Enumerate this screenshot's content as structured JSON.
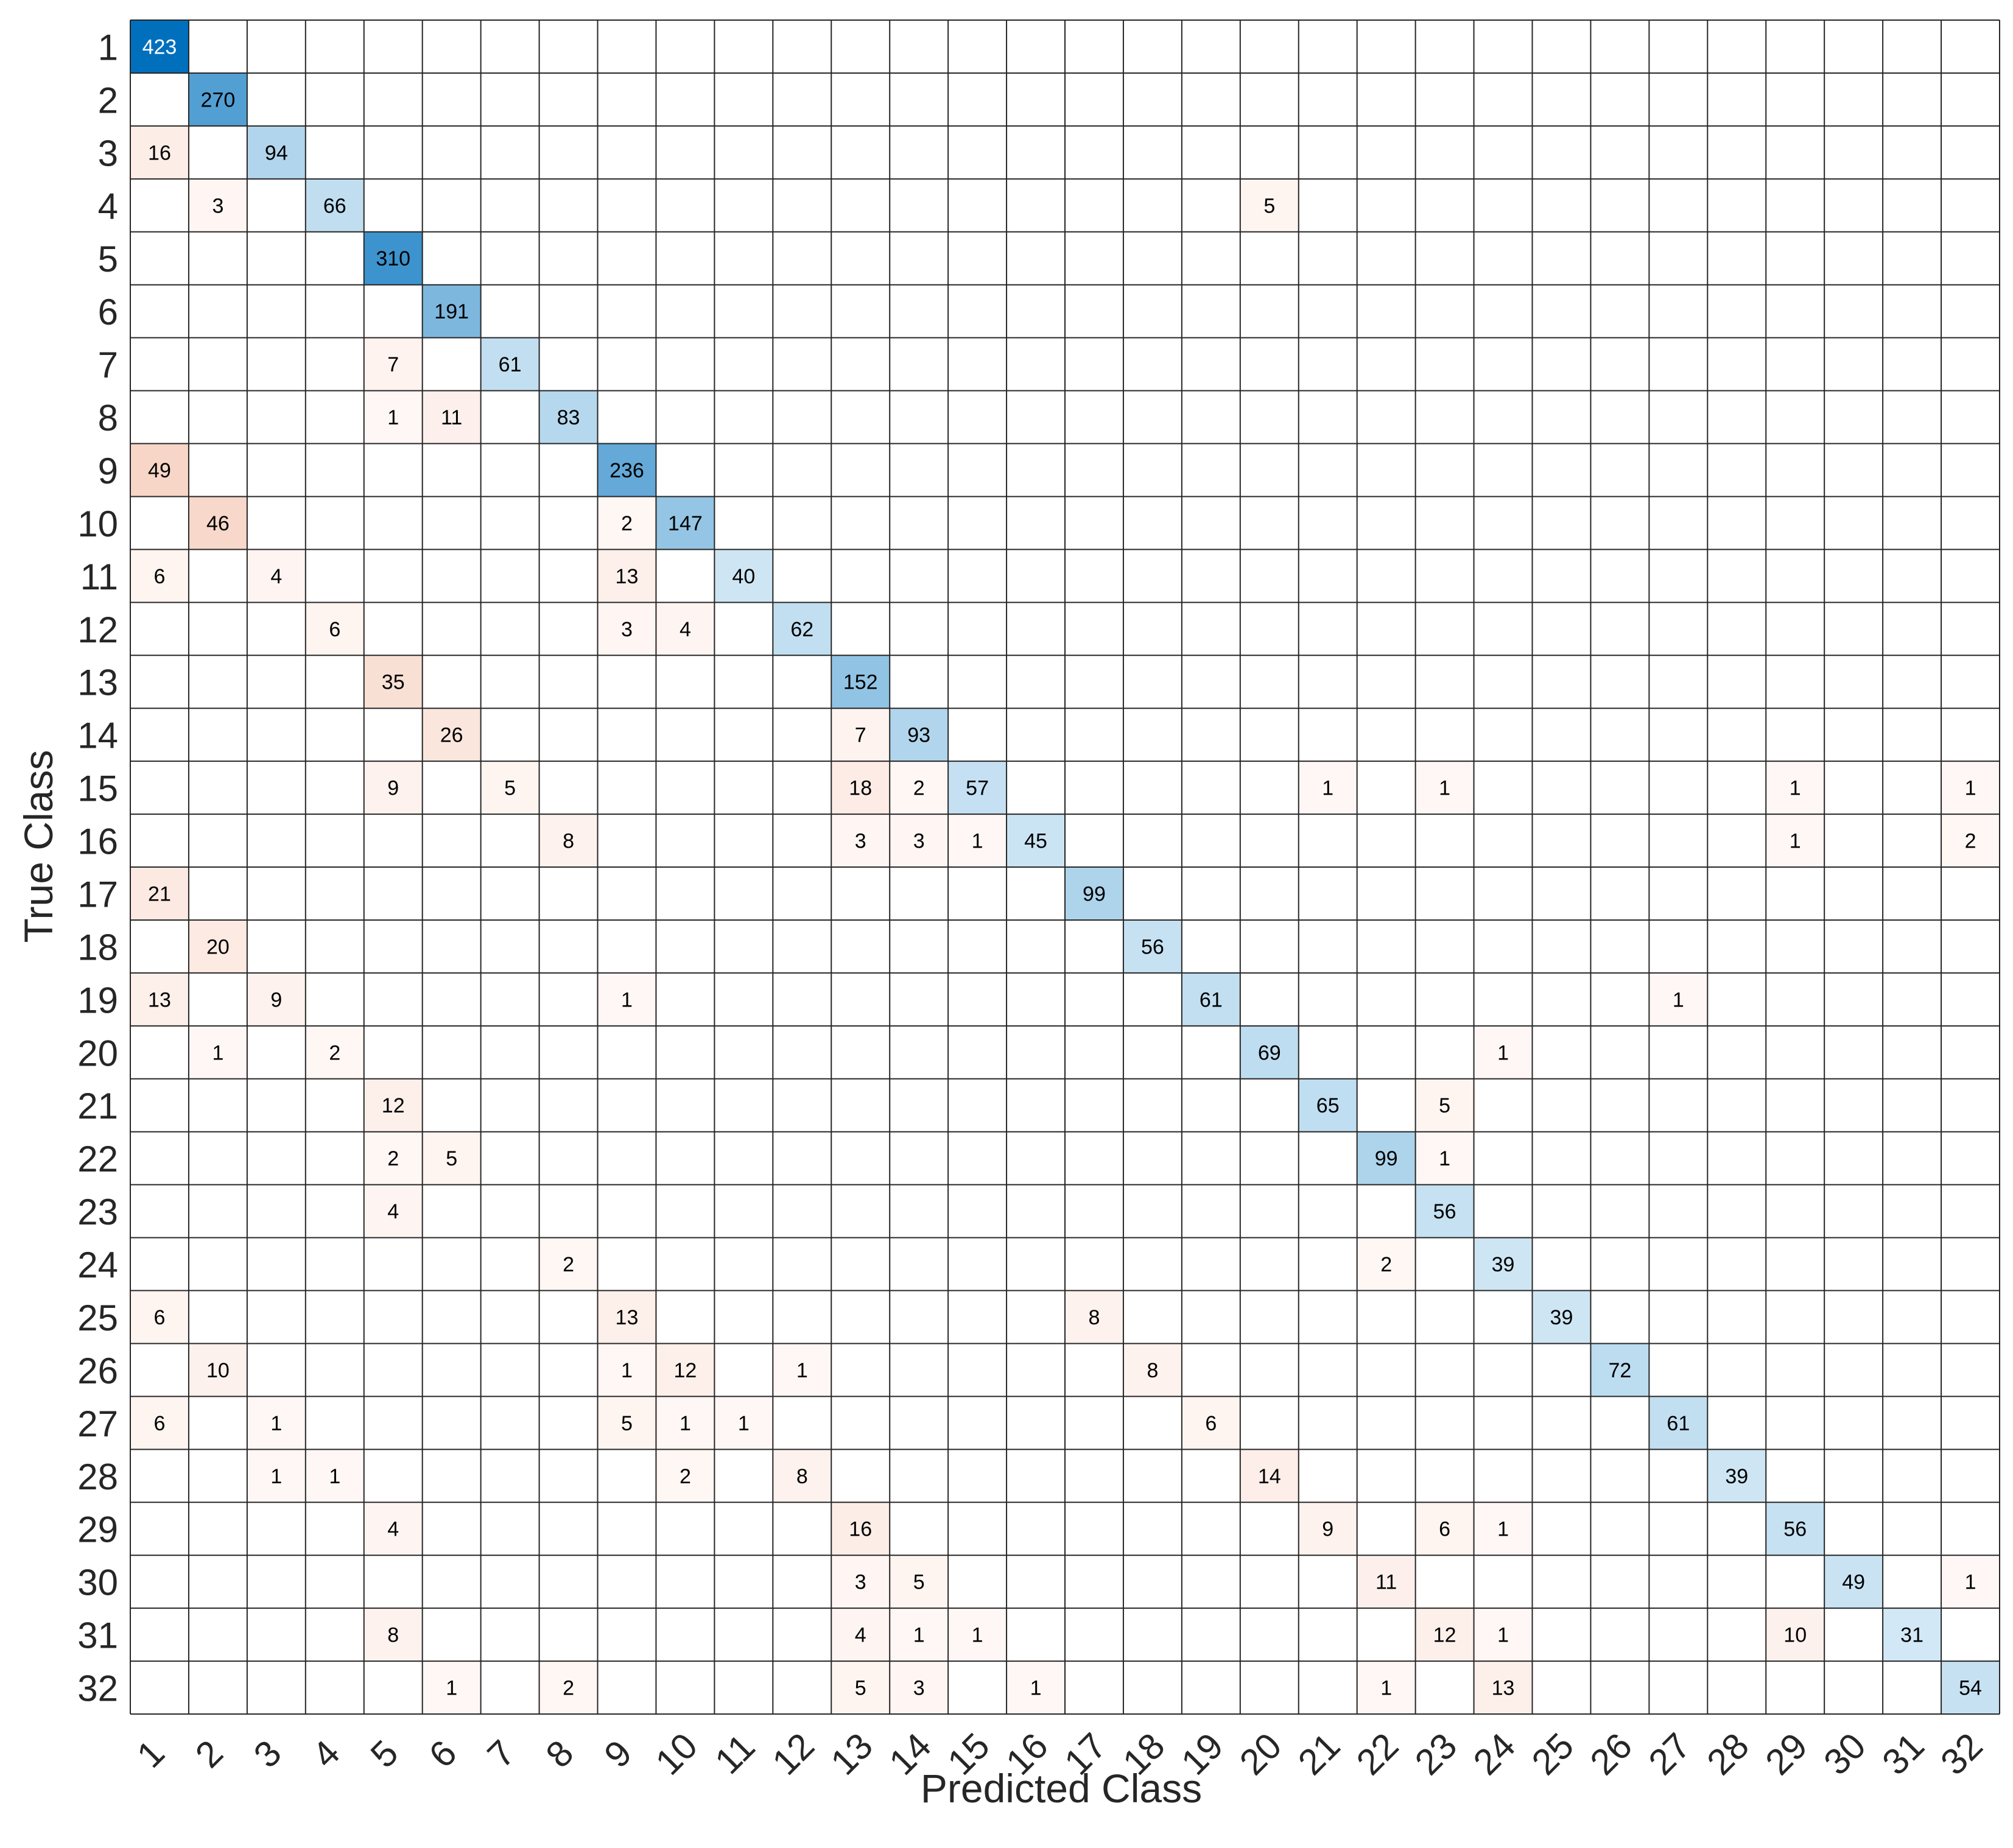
{
  "chart_data": {
    "type": "heatmap",
    "title": "",
    "xlabel": "Predicted Class",
    "ylabel": "True Class",
    "row_labels": [
      "1",
      "2",
      "3",
      "4",
      "5",
      "6",
      "7",
      "8",
      "9",
      "10",
      "11",
      "12",
      "13",
      "14",
      "15",
      "16",
      "17",
      "18",
      "19",
      "20",
      "21",
      "22",
      "23",
      "24",
      "25",
      "26",
      "27",
      "28",
      "29",
      "30",
      "31",
      "32"
    ],
    "col_labels": [
      "1",
      "2",
      "3",
      "4",
      "5",
      "6",
      "7",
      "8",
      "9",
      "10",
      "11",
      "12",
      "13",
      "14",
      "15",
      "16",
      "17",
      "18",
      "19",
      "20",
      "21",
      "22",
      "23",
      "24",
      "25",
      "26",
      "27",
      "28",
      "29",
      "30",
      "31",
      "32"
    ],
    "cells": [
      {
        "row": 1,
        "col": 1,
        "value": 423
      },
      {
        "row": 2,
        "col": 2,
        "value": 270
      },
      {
        "row": 3,
        "col": 1,
        "value": 16
      },
      {
        "row": 3,
        "col": 3,
        "value": 94
      },
      {
        "row": 4,
        "col": 2,
        "value": 3
      },
      {
        "row": 4,
        "col": 4,
        "value": 66
      },
      {
        "row": 4,
        "col": 20,
        "value": 5
      },
      {
        "row": 5,
        "col": 5,
        "value": 310
      },
      {
        "row": 6,
        "col": 6,
        "value": 191
      },
      {
        "row": 7,
        "col": 5,
        "value": 7
      },
      {
        "row": 7,
        "col": 7,
        "value": 61
      },
      {
        "row": 8,
        "col": 5,
        "value": 1
      },
      {
        "row": 8,
        "col": 6,
        "value": 11
      },
      {
        "row": 8,
        "col": 8,
        "value": 83
      },
      {
        "row": 9,
        "col": 1,
        "value": 49
      },
      {
        "row": 9,
        "col": 9,
        "value": 236
      },
      {
        "row": 10,
        "col": 2,
        "value": 46
      },
      {
        "row": 10,
        "col": 9,
        "value": 2
      },
      {
        "row": 10,
        "col": 10,
        "value": 147
      },
      {
        "row": 11,
        "col": 1,
        "value": 6
      },
      {
        "row": 11,
        "col": 3,
        "value": 4
      },
      {
        "row": 11,
        "col": 9,
        "value": 13
      },
      {
        "row": 11,
        "col": 11,
        "value": 40
      },
      {
        "row": 12,
        "col": 4,
        "value": 6
      },
      {
        "row": 12,
        "col": 9,
        "value": 3
      },
      {
        "row": 12,
        "col": 10,
        "value": 4
      },
      {
        "row": 12,
        "col": 12,
        "value": 62
      },
      {
        "row": 13,
        "col": 5,
        "value": 35
      },
      {
        "row": 13,
        "col": 13,
        "value": 152
      },
      {
        "row": 14,
        "col": 6,
        "value": 26
      },
      {
        "row": 14,
        "col": 13,
        "value": 7
      },
      {
        "row": 14,
        "col": 14,
        "value": 93
      },
      {
        "row": 15,
        "col": 5,
        "value": 9
      },
      {
        "row": 15,
        "col": 7,
        "value": 5
      },
      {
        "row": 15,
        "col": 13,
        "value": 18
      },
      {
        "row": 15,
        "col": 14,
        "value": 2
      },
      {
        "row": 15,
        "col": 15,
        "value": 57
      },
      {
        "row": 15,
        "col": 21,
        "value": 1
      },
      {
        "row": 15,
        "col": 23,
        "value": 1
      },
      {
        "row": 15,
        "col": 29,
        "value": 1
      },
      {
        "row": 15,
        "col": 32,
        "value": 1
      },
      {
        "row": 16,
        "col": 8,
        "value": 8
      },
      {
        "row": 16,
        "col": 13,
        "value": 3
      },
      {
        "row": 16,
        "col": 14,
        "value": 3
      },
      {
        "row": 16,
        "col": 15,
        "value": 1
      },
      {
        "row": 16,
        "col": 16,
        "value": 45
      },
      {
        "row": 16,
        "col": 29,
        "value": 1
      },
      {
        "row": 16,
        "col": 32,
        "value": 2
      },
      {
        "row": 17,
        "col": 1,
        "value": 21
      },
      {
        "row": 17,
        "col": 17,
        "value": 99
      },
      {
        "row": 18,
        "col": 2,
        "value": 20
      },
      {
        "row": 18,
        "col": 18,
        "value": 56
      },
      {
        "row": 19,
        "col": 1,
        "value": 13
      },
      {
        "row": 19,
        "col": 3,
        "value": 9
      },
      {
        "row": 19,
        "col": 9,
        "value": 1
      },
      {
        "row": 19,
        "col": 19,
        "value": 61
      },
      {
        "row": 19,
        "col": 27,
        "value": 1
      },
      {
        "row": 20,
        "col": 2,
        "value": 1
      },
      {
        "row": 20,
        "col": 4,
        "value": 2
      },
      {
        "row": 20,
        "col": 20,
        "value": 69
      },
      {
        "row": 20,
        "col": 24,
        "value": 1
      },
      {
        "row": 21,
        "col": 5,
        "value": 12
      },
      {
        "row": 21,
        "col": 21,
        "value": 65
      },
      {
        "row": 21,
        "col": 23,
        "value": 5
      },
      {
        "row": 22,
        "col": 5,
        "value": 2
      },
      {
        "row": 22,
        "col": 6,
        "value": 5
      },
      {
        "row": 22,
        "col": 22,
        "value": 99
      },
      {
        "row": 22,
        "col": 23,
        "value": 1
      },
      {
        "row": 23,
        "col": 5,
        "value": 4
      },
      {
        "row": 23,
        "col": 23,
        "value": 56
      },
      {
        "row": 24,
        "col": 8,
        "value": 2
      },
      {
        "row": 24,
        "col": 22,
        "value": 2
      },
      {
        "row": 24,
        "col": 24,
        "value": 39
      },
      {
        "row": 25,
        "col": 1,
        "value": 6
      },
      {
        "row": 25,
        "col": 9,
        "value": 13
      },
      {
        "row": 25,
        "col": 17,
        "value": 8
      },
      {
        "row": 25,
        "col": 25,
        "value": 39
      },
      {
        "row": 26,
        "col": 2,
        "value": 10
      },
      {
        "row": 26,
        "col": 9,
        "value": 1
      },
      {
        "row": 26,
        "col": 10,
        "value": 12
      },
      {
        "row": 26,
        "col": 12,
        "value": 1
      },
      {
        "row": 26,
        "col": 18,
        "value": 8
      },
      {
        "row": 26,
        "col": 26,
        "value": 72
      },
      {
        "row": 27,
        "col": 1,
        "value": 6
      },
      {
        "row": 27,
        "col": 3,
        "value": 1
      },
      {
        "row": 27,
        "col": 9,
        "value": 5
      },
      {
        "row": 27,
        "col": 10,
        "value": 1
      },
      {
        "row": 27,
        "col": 11,
        "value": 1
      },
      {
        "row": 27,
        "col": 19,
        "value": 6
      },
      {
        "row": 27,
        "col": 27,
        "value": 61
      },
      {
        "row": 28,
        "col": 3,
        "value": 1
      },
      {
        "row": 28,
        "col": 4,
        "value": 1
      },
      {
        "row": 28,
        "col": 10,
        "value": 2
      },
      {
        "row": 28,
        "col": 12,
        "value": 8
      },
      {
        "row": 28,
        "col": 20,
        "value": 14
      },
      {
        "row": 28,
        "col": 28,
        "value": 39
      },
      {
        "row": 29,
        "col": 5,
        "value": 4
      },
      {
        "row": 29,
        "col": 13,
        "value": 16
      },
      {
        "row": 29,
        "col": 21,
        "value": 9
      },
      {
        "row": 29,
        "col": 23,
        "value": 6
      },
      {
        "row": 29,
        "col": 24,
        "value": 1
      },
      {
        "row": 29,
        "col": 29,
        "value": 56
      },
      {
        "row": 30,
        "col": 13,
        "value": 3
      },
      {
        "row": 30,
        "col": 14,
        "value": 5
      },
      {
        "row": 30,
        "col": 22,
        "value": 11
      },
      {
        "row": 30,
        "col": 30,
        "value": 49
      },
      {
        "row": 30,
        "col": 32,
        "value": 1
      },
      {
        "row": 31,
        "col": 5,
        "value": 8
      },
      {
        "row": 31,
        "col": 13,
        "value": 4
      },
      {
        "row": 31,
        "col": 14,
        "value": 1
      },
      {
        "row": 31,
        "col": 15,
        "value": 1
      },
      {
        "row": 31,
        "col": 23,
        "value": 12
      },
      {
        "row": 31,
        "col": 24,
        "value": 1
      },
      {
        "row": 31,
        "col": 29,
        "value": 10
      },
      {
        "row": 31,
        "col": 31,
        "value": 31
      },
      {
        "row": 32,
        "col": 6,
        "value": 1
      },
      {
        "row": 32,
        "col": 8,
        "value": 2
      },
      {
        "row": 32,
        "col": 13,
        "value": 5
      },
      {
        "row": 32,
        "col": 14,
        "value": 3
      },
      {
        "row": 32,
        "col": 16,
        "value": 1
      },
      {
        "row": 32,
        "col": 22,
        "value": 1
      },
      {
        "row": 32,
        "col": 24,
        "value": 13
      },
      {
        "row": 32,
        "col": 32,
        "value": 54
      }
    ],
    "colors": {
      "correct_light": "#e3f2fa",
      "correct_dark": "#0070bd",
      "error_light": "#fff8f6",
      "error_dark": "#f7d6c8",
      "grid": "#262626",
      "text_dark": "#000000",
      "text_light": "#ffffff"
    },
    "grid": true,
    "legend": "none"
  }
}
